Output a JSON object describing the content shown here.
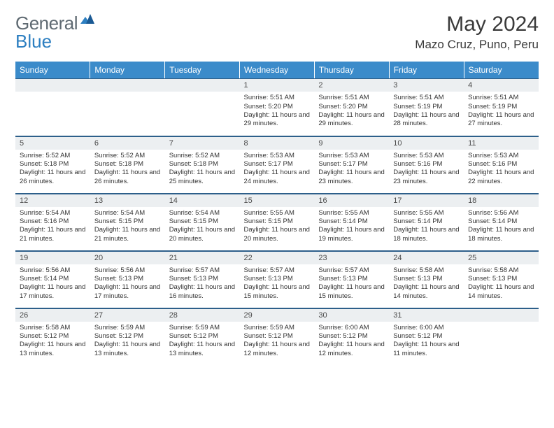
{
  "logo": {
    "text1": "General",
    "text2": "Blue"
  },
  "header": {
    "title": "May 2024",
    "location": "Mazo Cruz, Puno, Peru"
  },
  "colors": {
    "header_bg": "#3b8bca",
    "header_text": "#ffffff",
    "daynum_bg": "#eceff1",
    "rule": "#2d5f8a",
    "logo_gray": "#5f6a72",
    "logo_blue": "#2d7fc1"
  },
  "weekdays": [
    "Sunday",
    "Monday",
    "Tuesday",
    "Wednesday",
    "Thursday",
    "Friday",
    "Saturday"
  ],
  "weeks": [
    [
      null,
      null,
      null,
      {
        "n": "1",
        "sunrise": "5:51 AM",
        "sunset": "5:20 PM",
        "dl": "11 hours and 29 minutes."
      },
      {
        "n": "2",
        "sunrise": "5:51 AM",
        "sunset": "5:20 PM",
        "dl": "11 hours and 29 minutes."
      },
      {
        "n": "3",
        "sunrise": "5:51 AM",
        "sunset": "5:19 PM",
        "dl": "11 hours and 28 minutes."
      },
      {
        "n": "4",
        "sunrise": "5:51 AM",
        "sunset": "5:19 PM",
        "dl": "11 hours and 27 minutes."
      }
    ],
    [
      {
        "n": "5",
        "sunrise": "5:52 AM",
        "sunset": "5:18 PM",
        "dl": "11 hours and 26 minutes."
      },
      {
        "n": "6",
        "sunrise": "5:52 AM",
        "sunset": "5:18 PM",
        "dl": "11 hours and 26 minutes."
      },
      {
        "n": "7",
        "sunrise": "5:52 AM",
        "sunset": "5:18 PM",
        "dl": "11 hours and 25 minutes."
      },
      {
        "n": "8",
        "sunrise": "5:53 AM",
        "sunset": "5:17 PM",
        "dl": "11 hours and 24 minutes."
      },
      {
        "n": "9",
        "sunrise": "5:53 AM",
        "sunset": "5:17 PM",
        "dl": "11 hours and 23 minutes."
      },
      {
        "n": "10",
        "sunrise": "5:53 AM",
        "sunset": "5:16 PM",
        "dl": "11 hours and 23 minutes."
      },
      {
        "n": "11",
        "sunrise": "5:53 AM",
        "sunset": "5:16 PM",
        "dl": "11 hours and 22 minutes."
      }
    ],
    [
      {
        "n": "12",
        "sunrise": "5:54 AM",
        "sunset": "5:16 PM",
        "dl": "11 hours and 21 minutes."
      },
      {
        "n": "13",
        "sunrise": "5:54 AM",
        "sunset": "5:15 PM",
        "dl": "11 hours and 21 minutes."
      },
      {
        "n": "14",
        "sunrise": "5:54 AM",
        "sunset": "5:15 PM",
        "dl": "11 hours and 20 minutes."
      },
      {
        "n": "15",
        "sunrise": "5:55 AM",
        "sunset": "5:15 PM",
        "dl": "11 hours and 20 minutes."
      },
      {
        "n": "16",
        "sunrise": "5:55 AM",
        "sunset": "5:14 PM",
        "dl": "11 hours and 19 minutes."
      },
      {
        "n": "17",
        "sunrise": "5:55 AM",
        "sunset": "5:14 PM",
        "dl": "11 hours and 18 minutes."
      },
      {
        "n": "18",
        "sunrise": "5:56 AM",
        "sunset": "5:14 PM",
        "dl": "11 hours and 18 minutes."
      }
    ],
    [
      {
        "n": "19",
        "sunrise": "5:56 AM",
        "sunset": "5:14 PM",
        "dl": "11 hours and 17 minutes."
      },
      {
        "n": "20",
        "sunrise": "5:56 AM",
        "sunset": "5:13 PM",
        "dl": "11 hours and 17 minutes."
      },
      {
        "n": "21",
        "sunrise": "5:57 AM",
        "sunset": "5:13 PM",
        "dl": "11 hours and 16 minutes."
      },
      {
        "n": "22",
        "sunrise": "5:57 AM",
        "sunset": "5:13 PM",
        "dl": "11 hours and 15 minutes."
      },
      {
        "n": "23",
        "sunrise": "5:57 AM",
        "sunset": "5:13 PM",
        "dl": "11 hours and 15 minutes."
      },
      {
        "n": "24",
        "sunrise": "5:58 AM",
        "sunset": "5:13 PM",
        "dl": "11 hours and 14 minutes."
      },
      {
        "n": "25",
        "sunrise": "5:58 AM",
        "sunset": "5:13 PM",
        "dl": "11 hours and 14 minutes."
      }
    ],
    [
      {
        "n": "26",
        "sunrise": "5:58 AM",
        "sunset": "5:12 PM",
        "dl": "11 hours and 13 minutes."
      },
      {
        "n": "27",
        "sunrise": "5:59 AM",
        "sunset": "5:12 PM",
        "dl": "11 hours and 13 minutes."
      },
      {
        "n": "28",
        "sunrise": "5:59 AM",
        "sunset": "5:12 PM",
        "dl": "11 hours and 13 minutes."
      },
      {
        "n": "29",
        "sunrise": "5:59 AM",
        "sunset": "5:12 PM",
        "dl": "11 hours and 12 minutes."
      },
      {
        "n": "30",
        "sunrise": "6:00 AM",
        "sunset": "5:12 PM",
        "dl": "11 hours and 12 minutes."
      },
      {
        "n": "31",
        "sunrise": "6:00 AM",
        "sunset": "5:12 PM",
        "dl": "11 hours and 11 minutes."
      },
      null
    ]
  ],
  "labels": {
    "sunrise": "Sunrise: ",
    "sunset": "Sunset: ",
    "daylight": "Daylight: "
  }
}
